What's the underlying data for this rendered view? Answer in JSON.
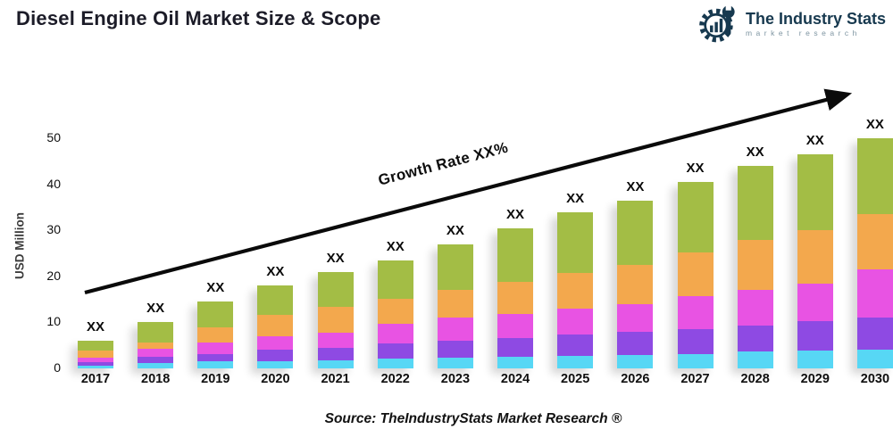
{
  "header": {
    "title": "Diesel Engine Oil Market Size & Scope"
  },
  "logo": {
    "name": "The Industry Stats",
    "tagline": "market research",
    "color": "#17394f"
  },
  "chart_data": {
    "type": "bar",
    "stacked": true,
    "title": "Diesel Engine Oil Market Size & Scope",
    "xlabel": "",
    "ylabel": "USD Million",
    "ylim": [
      0,
      50
    ],
    "yticks": [
      0,
      10,
      20,
      30,
      40,
      50
    ],
    "grid": false,
    "legend": "none",
    "categories": [
      "2017",
      "2018",
      "2019",
      "2020",
      "2021",
      "2022",
      "2023",
      "2024",
      "2025",
      "2026",
      "2027",
      "2028",
      "2029",
      "2030"
    ],
    "series": [
      {
        "name": "light-blue",
        "color": "#57d7f5",
        "values": [
          0.6,
          1.2,
          1.5,
          1.5,
          1.7,
          2.2,
          2.3,
          2.5,
          2.8,
          3.0,
          3.0,
          3.6,
          3.9,
          4.0
        ]
      },
      {
        "name": "purple",
        "color": "#8e4ae3",
        "values": [
          0.7,
          1.4,
          1.5,
          2.5,
          2.7,
          3.2,
          3.8,
          4.0,
          4.5,
          5.0,
          5.5,
          5.6,
          6.3,
          7.0
        ]
      },
      {
        "name": "magenta",
        "color": "#e853e3",
        "values": [
          1.0,
          1.6,
          2.7,
          2.9,
          3.3,
          4.3,
          5.0,
          5.3,
          5.7,
          6.0,
          7.2,
          7.8,
          8.3,
          10.5
        ]
      },
      {
        "name": "orange",
        "color": "#f3a84d",
        "values": [
          1.6,
          1.5,
          3.3,
          4.7,
          5.6,
          5.5,
          5.9,
          7.0,
          7.7,
          8.5,
          9.5,
          11.0,
          11.5,
          12.0
        ]
      },
      {
        "name": "green",
        "color": "#a3bd45",
        "values": [
          2.1,
          4.3,
          5.5,
          6.4,
          7.7,
          8.3,
          10.0,
          11.7,
          13.3,
          14.0,
          15.3,
          16.0,
          16.5,
          16.5
        ]
      }
    ],
    "totals": [
      6.0,
      10.0,
      14.5,
      18.0,
      21.0,
      23.5,
      27.0,
      30.5,
      34.0,
      36.5,
      40.5,
      44.0,
      46.5,
      50.0
    ],
    "bar_value_label": "XX",
    "growth_label": "Growth Rate XX%"
  },
  "footer": {
    "source": "Source: TheIndustryStats Market Research ®"
  }
}
